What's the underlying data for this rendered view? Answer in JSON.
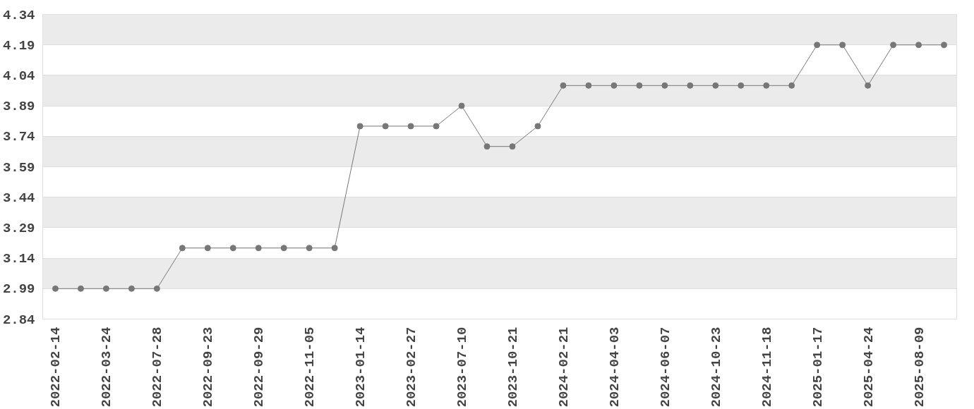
{
  "chart_data": {
    "type": "line",
    "categories": [
      "2022-02-14",
      null,
      "2022-03-24",
      null,
      "2022-07-28",
      null,
      "2022-09-23",
      null,
      "2022-09-29",
      null,
      "2022-11-05",
      null,
      "2023-01-14",
      null,
      "2023-02-27",
      null,
      "2023-07-10",
      null,
      "2023-10-21",
      null,
      "2024-02-21",
      null,
      "2024-04-03",
      null,
      "2024-06-07",
      null,
      "2024-10-23",
      null,
      "2024-11-18",
      null,
      "2025-01-17",
      null,
      "2025-04-24",
      null,
      "2025-08-09",
      null
    ],
    "series": [
      {
        "color": "#777777",
        "values": [
          2.99,
          2.99,
          2.99,
          2.99,
          2.99,
          3.19,
          3.19,
          3.19,
          3.19,
          3.19,
          3.19,
          3.19,
          3.79,
          3.79,
          3.79,
          3.79,
          3.89,
          3.69,
          3.69,
          3.79,
          3.99,
          3.99,
          3.99,
          3.99,
          3.99,
          3.99,
          3.99,
          3.99,
          3.99,
          3.99,
          4.19,
          4.19,
          3.99,
          4.19,
          4.19,
          4.19
        ]
      }
    ],
    "ylim": [
      2.84,
      4.34
    ],
    "yticks": [
      2.84,
      2.99,
      3.14,
      3.29,
      3.44,
      3.59,
      3.74,
      3.89,
      4.04,
      4.19,
      4.34
    ],
    "grid": "y",
    "marker": "circle",
    "line_style": "solid"
  }
}
